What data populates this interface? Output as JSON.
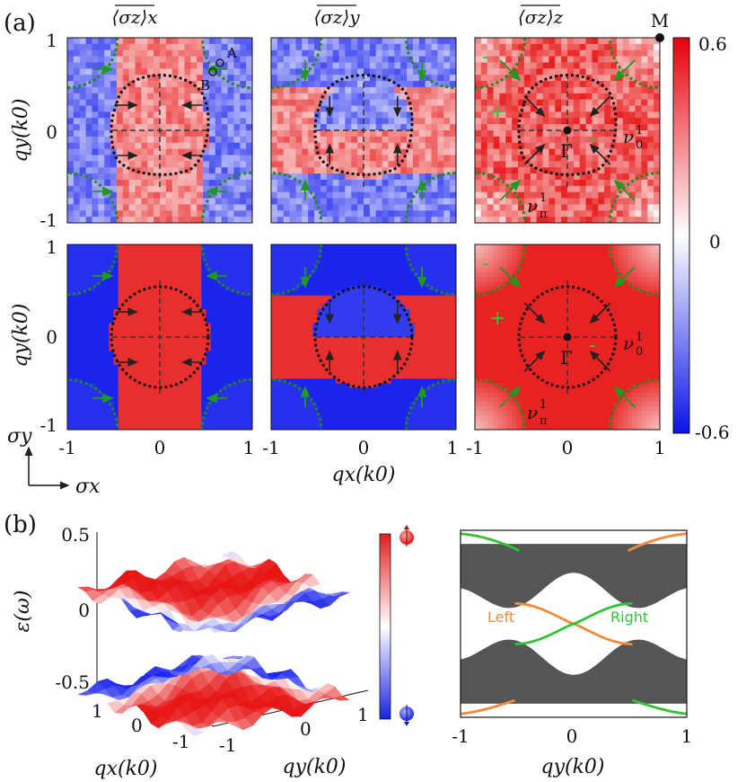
{
  "panel_a": {
    "label": "(a)",
    "column_titles": [
      "⟨σz⟩x",
      "⟨σz⟩y",
      "⟨σz⟩z"
    ],
    "ylabel": "qy(k0)",
    "xlabel": "qx(k0)",
    "ticks": [
      "-1",
      "0",
      "1"
    ],
    "point_M": "M",
    "point_Gamma": "Γ",
    "point_A": "A",
    "point_B": "B",
    "plus_sign": "+",
    "minus_sign": "-",
    "nu0_label": "ν",
    "nu0_sup": "1",
    "nu0_sub": "0",
    "nupi_label": "ν",
    "nupi_sup": "1",
    "nupi_sub": "π",
    "axis_sigma_y": "σy",
    "axis_sigma_x": "σx"
  },
  "colorbar_a": {
    "ticks": [
      "0.6",
      "0",
      "-0.6"
    ],
    "max_color": "#e8000a",
    "min_color": "#0a14e6"
  },
  "panel_b": {
    "label": "(b)",
    "zlabel": "ε(ω)",
    "zticks": [
      "0.5",
      "0",
      "-0.5"
    ],
    "qx_ticks": [
      "1",
      "0",
      "-1"
    ],
    "qy_ticks": [
      "-1",
      "0",
      "1"
    ],
    "qx_label": "qx(k0)",
    "qy_label": "qy(k0)"
  },
  "panel_c": {
    "xlabel": "qy(k0)",
    "xticks": [
      "-1",
      "0",
      "1"
    ],
    "left_label": "Left",
    "right_label": "Right",
    "left_color": "#f08a3c",
    "right_color": "#33c233",
    "bulk_color": "#555555"
  },
  "colors": {
    "red": "#e3262d",
    "blue": "#2a3fe0",
    "green_dotted": "#1f8a1f",
    "arrow_green": "#1f9a1f",
    "arrow_black": "#222222"
  }
}
